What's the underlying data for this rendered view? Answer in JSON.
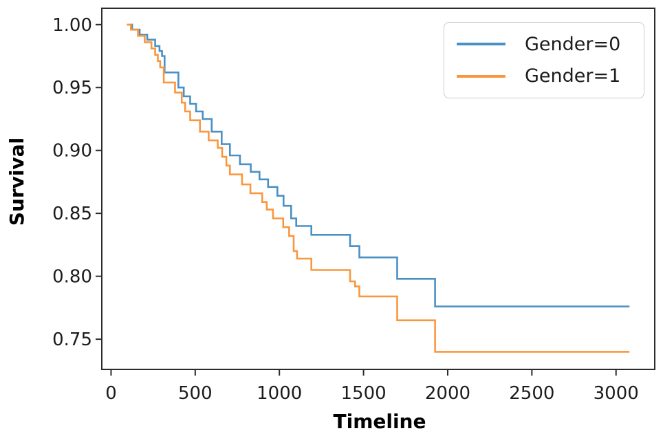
{
  "figure": {
    "background": "#ffffff",
    "frame_color": "#2b2b2b",
    "text_color": "#1c1c1c"
  },
  "chart_data": {
    "type": "line",
    "subtype": "kaplan_meier_step",
    "title": "",
    "xlabel": "Timeline",
    "ylabel": "Survival",
    "xlim": [
      -55,
      3230
    ],
    "ylim": [
      0.726,
      1.013
    ],
    "grid": false,
    "legend": {
      "position": "upper-right"
    },
    "x_ticks": {
      "values": [
        0,
        500,
        1000,
        1500,
        2000,
        2500,
        3000
      ],
      "labels": [
        "0",
        "500",
        "1000",
        "1500",
        "2000",
        "2500",
        "3000"
      ]
    },
    "y_ticks": {
      "values": [
        0.75,
        0.8,
        0.85,
        0.9,
        0.95,
        1.0
      ],
      "labels": [
        "0.75",
        "0.80",
        "0.85",
        "0.90",
        "0.95",
        "1.00"
      ]
    },
    "t_start": 94,
    "t_end": 3080,
    "series": [
      {
        "name": "Gender=0",
        "color": "#4A90C4",
        "points": [
          [
            94,
            1.0
          ],
          [
            125,
            0.996
          ],
          [
            170,
            0.992
          ],
          [
            215,
            0.988
          ],
          [
            262,
            0.983
          ],
          [
            288,
            0.979
          ],
          [
            303,
            0.975
          ],
          [
            318,
            0.962
          ],
          [
            400,
            0.95
          ],
          [
            432,
            0.943
          ],
          [
            470,
            0.937
          ],
          [
            505,
            0.931
          ],
          [
            545,
            0.925
          ],
          [
            598,
            0.915
          ],
          [
            657,
            0.905
          ],
          [
            706,
            0.896
          ],
          [
            766,
            0.889
          ],
          [
            830,
            0.883
          ],
          [
            882,
            0.877
          ],
          [
            933,
            0.871
          ],
          [
            988,
            0.864
          ],
          [
            1025,
            0.856
          ],
          [
            1070,
            0.846
          ],
          [
            1100,
            0.84
          ],
          [
            1190,
            0.833
          ],
          [
            1420,
            0.824
          ],
          [
            1475,
            0.815
          ],
          [
            1700,
            0.798
          ],
          [
            1925,
            0.776
          ]
        ]
      },
      {
        "name": "Gender=1",
        "color": "#F9973F",
        "points": [
          [
            94,
            1.0
          ],
          [
            118,
            0.996
          ],
          [
            160,
            0.991
          ],
          [
            200,
            0.986
          ],
          [
            240,
            0.981
          ],
          [
            262,
            0.976
          ],
          [
            278,
            0.971
          ],
          [
            292,
            0.966
          ],
          [
            313,
            0.954
          ],
          [
            380,
            0.946
          ],
          [
            420,
            0.938
          ],
          [
            440,
            0.931
          ],
          [
            470,
            0.924
          ],
          [
            528,
            0.915
          ],
          [
            580,
            0.908
          ],
          [
            634,
            0.902
          ],
          [
            660,
            0.895
          ],
          [
            685,
            0.888
          ],
          [
            706,
            0.881
          ],
          [
            778,
            0.873
          ],
          [
            828,
            0.866
          ],
          [
            898,
            0.859
          ],
          [
            925,
            0.853
          ],
          [
            962,
            0.846
          ],
          [
            1023,
            0.839
          ],
          [
            1058,
            0.832
          ],
          [
            1085,
            0.82
          ],
          [
            1105,
            0.814
          ],
          [
            1190,
            0.805
          ],
          [
            1420,
            0.796
          ],
          [
            1450,
            0.792
          ],
          [
            1475,
            0.784
          ],
          [
            1700,
            0.765
          ],
          [
            1925,
            0.74
          ]
        ]
      }
    ]
  }
}
